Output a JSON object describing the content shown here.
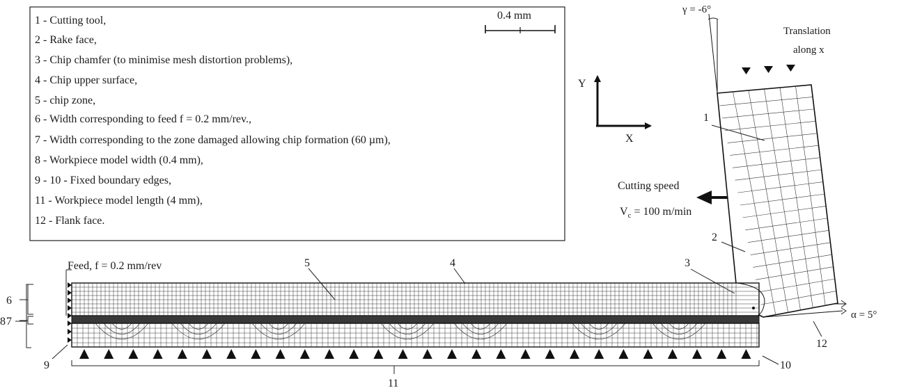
{
  "legend": {
    "items": [
      "1 - Cutting tool,",
      "2 - Rake face,",
      "3 - Chip chamfer (to minimise mesh distortion problems),",
      "4 - Chip upper surface,",
      "5 - chip zone,",
      "6 - Width corresponding to feed f = 0.2 mm/rev.,",
      "7 - Width corresponding to the zone damaged allowing chip formation (60 µm),",
      "8 - Workpiece model width (0.4 mm),",
      "9 - 10 - Fixed boundary edges,",
      "11 - Workpiece model length (4 mm),",
      "12 - Flank face."
    ],
    "scale_bar": "0.4 mm"
  },
  "axes": {
    "y": "Y",
    "x": "X"
  },
  "tool": {
    "rake_angle": "γ = -6°",
    "translation_line1": "Translation",
    "translation_line2": "along x",
    "clearance_angle": "α = 5°"
  },
  "cutting_speed": {
    "line1": "Cutting speed",
    "line2_prefix": "V",
    "line2_sub": "c",
    "line2_rest": " = 100 m/min"
  },
  "feed_label": "Feed, f = 0.2 mm/rev",
  "callouts": {
    "n1": "1",
    "n2": "2",
    "n3": "3",
    "n4": "4",
    "n5": "5",
    "n6": "6",
    "n7": "7",
    "n8": "8",
    "n9": "9",
    "n10": "10",
    "n11": "11",
    "n12": "12"
  }
}
